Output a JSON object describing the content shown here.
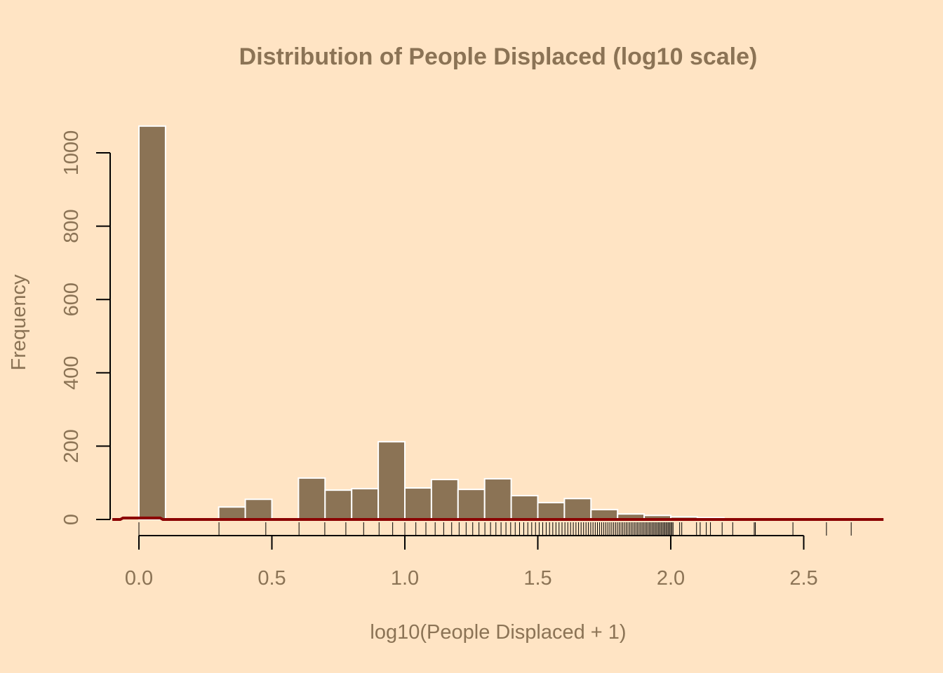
{
  "colors": {
    "background": "#FFE4C4",
    "bar": "#8B7355",
    "bar_border": "#FFFFFF",
    "text": "#8B7355",
    "density": "#8B0000",
    "axis": "#000000"
  },
  "chart_data": {
    "type": "bar",
    "title": "Distribution of People Displaced (log10 scale)",
    "xlabel": "log10(People Displaced + 1)",
    "ylabel": "Frequency",
    "xlim": [
      -0.1,
      2.8
    ],
    "ylim": [
      0,
      1073
    ],
    "x_ticks": [
      0,
      0.5,
      1,
      1.5,
      2,
      2.5
    ],
    "x_tick_labels": [
      "0.0",
      "0.5",
      "1.0",
      "1.5",
      "2.0",
      "2.5"
    ],
    "y_ticks": [
      0,
      200,
      400,
      600,
      800,
      1000
    ],
    "y_tick_labels": [
      "0",
      "200",
      "400",
      "600",
      "800",
      "1000"
    ],
    "bin_width": 0.1,
    "bin_starts": [
      0.0,
      0.1,
      0.2,
      0.3,
      0.4,
      0.5,
      0.6,
      0.7,
      0.8,
      0.9,
      1.0,
      1.1,
      1.2,
      1.3,
      1.4,
      1.5,
      1.6,
      1.7,
      1.8,
      1.9,
      2.0,
      2.1
    ],
    "values": [
      1073,
      0,
      0,
      34,
      55,
      0,
      113,
      80,
      84,
      212,
      86,
      109,
      82,
      111,
      65,
      46,
      57,
      27,
      15,
      11,
      7,
      5
    ],
    "density_line": {
      "x": [
        -0.1,
        -0.07,
        -0.06,
        0.08,
        0.09,
        2.8
      ],
      "y": [
        0,
        0,
        4,
        4,
        0,
        0
      ]
    },
    "rug_people_plus1": [
      1,
      2,
      3,
      4,
      5,
      6,
      7,
      8,
      9,
      10,
      11,
      12,
      13,
      14,
      15,
      16,
      17,
      18,
      19,
      20,
      21,
      22,
      23,
      24,
      25,
      26,
      27,
      28,
      29,
      30,
      31,
      32,
      33,
      34,
      35,
      36,
      37,
      38,
      39,
      40,
      41,
      42,
      43,
      44,
      45,
      46,
      47,
      48,
      49,
      50,
      51,
      52,
      53,
      54,
      55,
      56,
      57,
      58,
      59,
      60,
      61,
      62,
      63,
      64,
      65,
      66,
      67,
      68,
      69,
      70,
      71,
      72,
      73,
      74,
      75,
      76,
      77,
      78,
      79,
      80,
      81,
      82,
      83,
      84,
      85,
      86,
      87,
      88,
      89,
      90,
      91,
      92,
      93,
      94,
      95,
      96,
      97,
      98,
      99,
      100,
      101,
      102,
      108,
      110,
      125,
      129,
      136,
      141,
      156,
      171,
      206,
      208,
      288,
      385,
      477
    ]
  }
}
